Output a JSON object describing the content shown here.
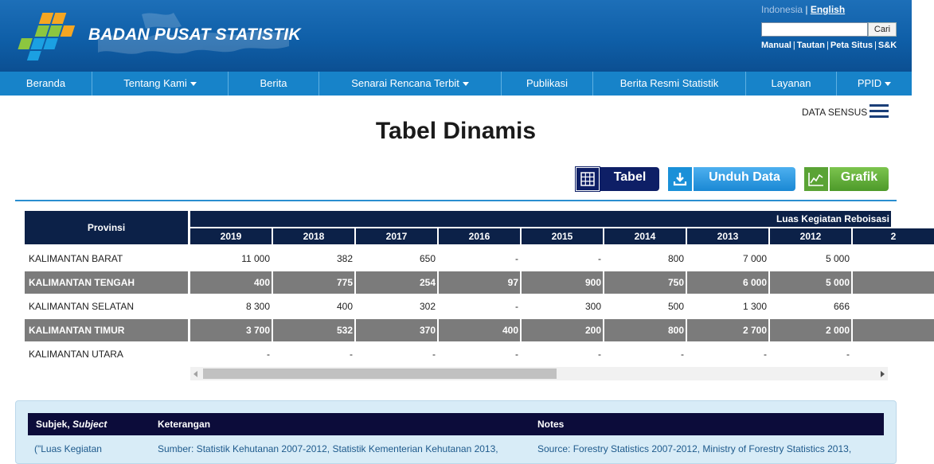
{
  "header": {
    "brand": "BADAN PUSAT STATISTIK",
    "lang_inactive": "Indonesia",
    "lang_sep": " | ",
    "lang_active": "English",
    "search_button": "Cari",
    "links": [
      "Manual",
      "Tautan",
      "Peta Situs",
      "S&K"
    ]
  },
  "nav": {
    "items": [
      {
        "label": "Beranda",
        "dropdown": false
      },
      {
        "label": "Tentang Kami",
        "dropdown": true
      },
      {
        "label": "Berita",
        "dropdown": false
      },
      {
        "label": "Senarai Rencana Terbit",
        "dropdown": true
      },
      {
        "label": "Publikasi",
        "dropdown": false
      },
      {
        "label": "Berita Resmi Statistik",
        "dropdown": false
      },
      {
        "label": "Layanan",
        "dropdown": false
      },
      {
        "label": "PPID",
        "dropdown": true
      }
    ]
  },
  "page": {
    "sensus_label": "DATA SENSUS",
    "title": "Tabel Dinamis"
  },
  "actions": {
    "tabel": "Tabel",
    "unduh": "Unduh Data",
    "grafik": "Grafik"
  },
  "table": {
    "row_header": "Provinsi",
    "group_header": "Luas Kegiatan Reboisasi",
    "years": [
      "2019",
      "2018",
      "2017",
      "2016",
      "2015",
      "2014",
      "2013",
      "2012",
      "2"
    ],
    "rows": [
      {
        "provinsi": "KALIMANTAN BARAT",
        "values": [
          "11 000",
          "382",
          "650",
          "-",
          "-",
          "800",
          "7 000",
          "5 000",
          ""
        ]
      },
      {
        "provinsi": "KALIMANTAN TENGAH",
        "values": [
          "400",
          "775",
          "254",
          "97",
          "900",
          "750",
          "6 000",
          "5 000",
          ""
        ]
      },
      {
        "provinsi": "KALIMANTAN SELATAN",
        "values": [
          "8 300",
          "400",
          "302",
          "-",
          "300",
          "500",
          "1 300",
          "666",
          ""
        ]
      },
      {
        "provinsi": "KALIMANTAN TIMUR",
        "values": [
          "3 700",
          "532",
          "370",
          "400",
          "200",
          "800",
          "2 700",
          "2 000",
          ""
        ]
      },
      {
        "provinsi": "KALIMANTAN UTARA",
        "values": [
          "-",
          "-",
          "-",
          "-",
          "-",
          "-",
          "-",
          "-",
          ""
        ]
      }
    ]
  },
  "notes": {
    "head_subjek": "Subjek, ",
    "head_subject_en": "Subject",
    "head_keterangan": "Keterangan",
    "head_notes": "Notes",
    "subjek": "(\"Luas Kegiatan",
    "keterangan": "Sumber: Statistik Kehutanan 2007-2012, Statistik Kementerian Kehutanan 2013,",
    "notes_text": "Source: Forestry Statistics 2007-2012, Ministry of Forestry Statistics 2013,"
  }
}
